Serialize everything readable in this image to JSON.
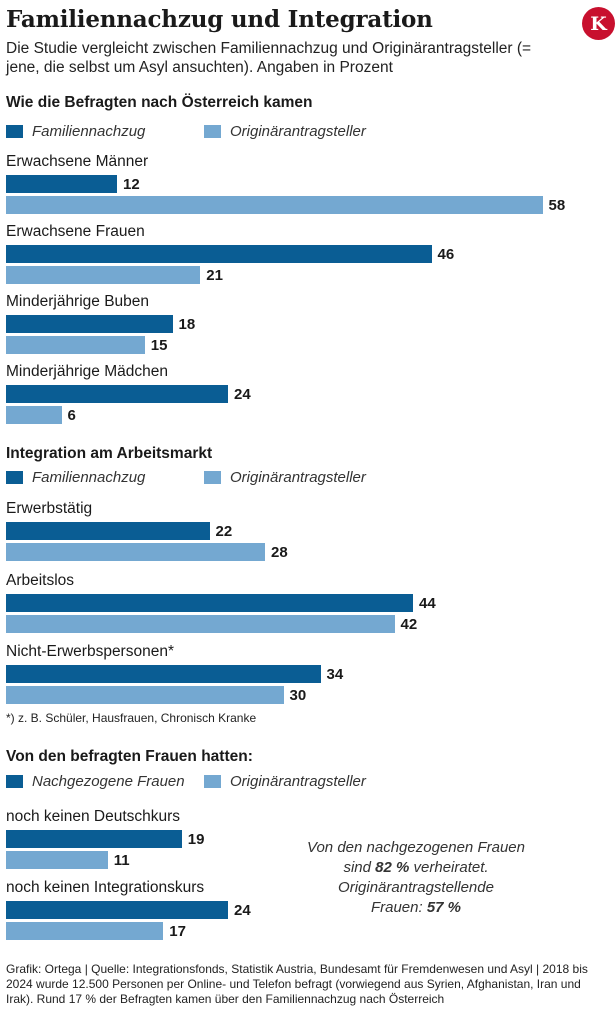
{
  "header": {
    "title": "Familiennachzug und Integration",
    "subtitle": "Die Studie vergleicht zwischen Familiennachzug und Originärantragsteller (= jene, die selbst um Asyl ansuchten). Angaben in Prozent",
    "logo_letter": "K"
  },
  "colors": {
    "dark": "#0a5d94",
    "light": "#74a8d1",
    "logo": "#c8102e"
  },
  "chart_data": [
    {
      "type": "bar",
      "orientation": "horizontal",
      "title": "Wie die Befragten nach Österreich kamen",
      "legend": [
        "Familiennachzug",
        "Originärantragsteller"
      ],
      "categories": [
        "Erwachsene Männer",
        "Erwachsene Frauen",
        "Minderjährige Buben",
        "Minderjährige Mädchen"
      ],
      "series": [
        {
          "name": "Familiennachzug",
          "values": [
            12,
            46,
            18,
            24
          ]
        },
        {
          "name": "Originärantragsteller",
          "values": [
            58,
            21,
            15,
            6
          ]
        }
      ]
    },
    {
      "type": "bar",
      "orientation": "horizontal",
      "title": "Integration am Arbeitsmarkt",
      "legend": [
        "Familiennachzug",
        "Originärantragsteller"
      ],
      "categories": [
        "Erwerbstätig",
        "Arbeitslos",
        "Nicht-Erwerbspersonen*"
      ],
      "series": [
        {
          "name": "Familiennachzug",
          "values": [
            22,
            44,
            34
          ]
        },
        {
          "name": "Originärantragsteller",
          "values": [
            28,
            42,
            30
          ]
        }
      ]
    },
    {
      "type": "bar",
      "orientation": "horizontal",
      "title": "Von den befragten Frauen hatten:",
      "legend": [
        "Nachgezogene Frauen",
        "Originärantragsteller"
      ],
      "categories": [
        "noch keinen Deutschkurs",
        "noch keinen Integrationskurs"
      ],
      "series": [
        {
          "name": "Nachgezogene Frauen",
          "values": [
            19,
            24
          ]
        },
        {
          "name": "Originärantragsteller",
          "values": [
            11,
            17
          ]
        }
      ]
    }
  ],
  "footnote": "*) z. B. Schüler, Hausfrauen, Chronisch Kranke",
  "note": {
    "line1": "Von den nachgezogenen Frauen",
    "line2_pre": "sind",
    "line2_bold": "82 %",
    "line2_post": "verheiratet.",
    "line3": "Originärantragstellende",
    "line4_pre": "Frauen:",
    "line4_bold": "57 %"
  },
  "source": "Grafik: Ortega | Quelle: Integrationsfonds, Statistik Austria, Bundesamt für Fremdenwesen und Asyl | 2018 bis 2024 wurde 12.500 Personen per Online- und Telefon befragt (vorwiegend aus Syrien, Afghanistan, Iran und Irak). Rund 17 % der Befragten kamen über den Familiennachzug nach Österreich"
}
